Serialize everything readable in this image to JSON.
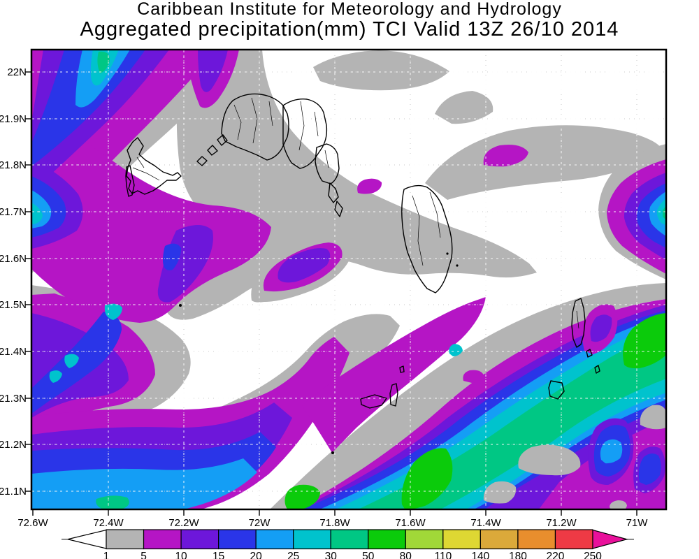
{
  "header": {
    "line1": "Caribbean Institute for Meteorology and Hydrology",
    "line2": "Aggregated precipitation(mm) TCI Valid 13Z 26/10 2014"
  },
  "axes": {
    "lat_labels": [
      "22N",
      "21.9N",
      "21.8N",
      "21.7N",
      "21.6N",
      "21.5N",
      "21.4N",
      "21.3N",
      "21.2N",
      "21.1N"
    ],
    "lon_labels": [
      "72.6W",
      "72.4W",
      "72.2W",
      "72W",
      "71.8W",
      "71.6W",
      "71.4W",
      "71.2W",
      "71W"
    ]
  },
  "colorbar": {
    "values": [
      "1",
      "5",
      "10",
      "15",
      "20",
      "25",
      "30",
      "50",
      "80",
      "110",
      "140",
      "180",
      "220",
      "250"
    ],
    "segment_colors": [
      "#b4b4b4",
      "#b515c5",
      "#6d17da",
      "#2a35e8",
      "#149ef5",
      "#00c3cd",
      "#00c784",
      "#0bcb0b",
      "#a1d838",
      "#ded733",
      "#dba93a",
      "#e88e2d",
      "#ee3a45"
    ],
    "under_arrow_color": "#ffffff",
    "over_arrow_color": "#e9119b"
  },
  "palette": {
    "gray": "#b4b4b4",
    "magenta": "#b515c5",
    "violet": "#6d17da",
    "blue": "#2a35e8",
    "lightblue": "#149ef5",
    "cyan": "#00c3cd",
    "teal": "#00c784",
    "green": "#0bcb0b",
    "yellowgreen": "#a1d838",
    "yellow": "#ded733",
    "amber": "#dba93a",
    "orange": "#e88e2d",
    "red": "#ee3a45",
    "pink": "#e9119b"
  },
  "chart_data": {
    "type": "heatmap",
    "subtype": "filled-contour precipitation map",
    "title": "Caribbean Institute for Meteorology and Hydrology",
    "subtitle": "Aggregated precipitation(mm) TCI Valid 13Z 26/10 2014",
    "units": "mm",
    "region": "Turks and Caicos Islands (TCI)",
    "valid_time": "13Z 26/10 2014",
    "xlabel": "longitude",
    "ylabel": "latitude",
    "x_ticks": [
      "72.6W",
      "72.4W",
      "72.2W",
      "72W",
      "71.8W",
      "71.6W",
      "71.4W",
      "71.2W",
      "71W"
    ],
    "y_ticks": [
      "22N",
      "21.9N",
      "21.8N",
      "21.7N",
      "21.6N",
      "21.5N",
      "21.4N",
      "21.3N",
      "21.2N",
      "21.1N"
    ],
    "x_range_deg_west": [
      72.6,
      70.92
    ],
    "y_range_deg_north": [
      21.06,
      22.05
    ],
    "grid": true,
    "contour_levels_mm": [
      1,
      5,
      10,
      15,
      20,
      25,
      30,
      50,
      80,
      110,
      140,
      180,
      220,
      250
    ],
    "level_colors": [
      "#b4b4b4",
      "#b515c5",
      "#6d17da",
      "#2a35e8",
      "#149ef5",
      "#00c3cd",
      "#00c784",
      "#0bcb0b",
      "#a1d838",
      "#ded733",
      "#dba93a",
      "#e88e2d",
      "#ee3a45"
    ],
    "legend_position": "bottom",
    "features": [
      {
        "area": "broad SW-NE band over lower-right (SE of the islands)",
        "lon": "71.6W-71.0W",
        "lat": "21.05N-21.55N",
        "band_mm": "15-50",
        "cores_mm": "50-80 near 71.55W/21.15N, 71.1W/21.4N and at right edge 21.55N-21.65N"
      },
      {
        "area": "NW corner diagonal band",
        "lon": "72.6W-72.1W",
        "lat": "21.85N-22.05N",
        "band_mm": "5-30",
        "cores_mm": "30-50 streak near 72.45W/22.03N"
      },
      {
        "area": "west edge",
        "lat": "21.65N-21.75N",
        "band_mm": "10-30 with 20-25 core"
      },
      {
        "area": "lower-left corner",
        "band_mm": "15-30 with small 30-50 spot"
      },
      {
        "area": "SW diagonal streak",
        "lon": "72.6W-72.35W",
        "lat": "21.35N-21.5N",
        "band_mm": "10-25"
      },
      {
        "area": "around the Caicos Islands",
        "band_mm": "mostly <1 (white) with 1-5 gray fringes; isolated 5-10 patch on East Caicos"
      },
      {
        "area": "isolated spot NE of islands",
        "lon": "71.35W",
        "lat": "21.78N",
        "band_mm": "5-10"
      },
      {
        "area": "right edge mid-level system",
        "lat": "21.55N-21.75N",
        "band_mm": "5-50, small 30-50 core at edge"
      }
    ]
  }
}
